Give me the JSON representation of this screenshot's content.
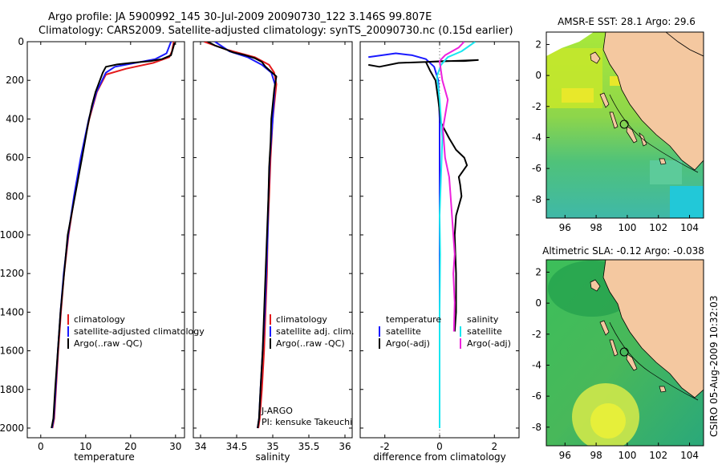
{
  "header": {
    "title_line1": "Argo profile: JA 5900992_145 30-Jul-2009 20090730_122 3.146S 99.807E",
    "title_line2": "Climatology: CARS2009. Satellite-adjusted climatology: synTS_20090730.nc (0.15d earlier)"
  },
  "footer": {
    "stamp": "CSIRO 05-Aug-2009 10:32:03"
  },
  "colors": {
    "climatology": "#e41a1c",
    "satellite": "#1a1aff",
    "argo": "#000000",
    "cyan": "#19e6f0",
    "magenta": "#ee22dd",
    "land": "#f4c8a0"
  },
  "chart_data": [
    {
      "type": "line",
      "xlabel": "temperature",
      "xticks": [
        0,
        10,
        20,
        30
      ],
      "xlim": [
        -3,
        32
      ],
      "ylim": [
        2050,
        0
      ],
      "yticks": [
        0,
        200,
        400,
        600,
        800,
        1000,
        1200,
        1400,
        1600,
        1800,
        2000
      ],
      "legend": [
        "climatology",
        "satellite-adjusted climatology",
        "Argo(..raw -QC)"
      ],
      "series": [
        {
          "name": "climatology",
          "color": "#e41a1c",
          "x": [
            29.6,
            29.2,
            28.6,
            25.0,
            19.0,
            14.5,
            12.5,
            10.8,
            9.0,
            7.5,
            6.2,
            5.2,
            4.5,
            3.9,
            3.4,
            3.0,
            2.6
          ],
          "y": [
            0,
            50,
            80,
            110,
            140,
            170,
            260,
            400,
            600,
            800,
            1000,
            1200,
            1400,
            1600,
            1800,
            1950,
            2000
          ]
        },
        {
          "name": "satellite-adjusted climatology",
          "color": "#1a1aff",
          "x": [
            29.0,
            28.0,
            25.5,
            21.0,
            16.5,
            14.5,
            12.4,
            10.7,
            8.9,
            7.4,
            6.1,
            5.1,
            4.4,
            3.8,
            3.3,
            2.9,
            2.5
          ],
          "y": [
            0,
            60,
            90,
            110,
            130,
            160,
            260,
            400,
            600,
            800,
            1000,
            1200,
            1400,
            1600,
            1800,
            1950,
            2000
          ]
        },
        {
          "name": "Argo(..raw -QC)",
          "color": "#000000",
          "x": [
            29.8,
            29.5,
            29.0,
            27.0,
            24.5,
            20.0,
            17.0,
            14.5,
            13.8,
            12.2,
            11.4,
            10.5,
            9.2,
            7.6,
            6.0,
            5.2,
            4.4,
            3.8,
            3.2,
            2.8,
            2.4
          ],
          "y": [
            5,
            30,
            70,
            90,
            100,
            110,
            118,
            130,
            160,
            260,
            330,
            430,
            600,
            800,
            1000,
            1200,
            1400,
            1600,
            1800,
            1950,
            2000
          ]
        }
      ]
    },
    {
      "type": "line",
      "xlabel": "salinity",
      "xticks": [
        34,
        34.5,
        35,
        35.5,
        36
      ],
      "xlim": [
        33.9,
        36.1
      ],
      "ylim": [
        2050,
        0
      ],
      "legend": [
        "climatology",
        "satellite adj. clim.",
        "Argo(..raw -QC)"
      ],
      "annotation": [
        "J-ARGO",
        "PI: kensuke Takeuchi"
      ],
      "series": [
        {
          "name": "climatology",
          "color": "#e41a1c",
          "x": [
            34.05,
            34.35,
            34.75,
            34.95,
            35.02,
            35.05,
            35.0,
            34.97,
            34.95,
            34.93,
            34.92,
            34.9,
            34.88,
            34.85,
            34.82,
            34.8
          ],
          "y": [
            0,
            40,
            80,
            120,
            160,
            220,
            400,
            600,
            800,
            1000,
            1200,
            1400,
            1600,
            1800,
            1950,
            2000
          ]
        },
        {
          "name": "satellite adj. clim.",
          "color": "#1a1aff",
          "x": [
            34.2,
            34.4,
            34.65,
            34.85,
            34.98,
            35.03,
            35.0,
            34.96,
            34.94,
            34.93,
            34.91,
            34.89,
            34.86,
            34.83,
            34.81,
            34.79
          ],
          "y": [
            0,
            50,
            80,
            120,
            160,
            220,
            400,
            600,
            800,
            1000,
            1200,
            1400,
            1600,
            1800,
            1950,
            2000
          ]
        },
        {
          "name": "Argo(..raw -QC)",
          "color": "#000000",
          "x": [
            34.1,
            34.2,
            34.35,
            34.45,
            34.62,
            34.75,
            34.8,
            34.85,
            34.9,
            35.05,
            35.02,
            34.98,
            34.97,
            34.95,
            34.94,
            34.93,
            34.92,
            34.9,
            34.88,
            34.86,
            34.83,
            34.81,
            34.79
          ],
          "y": [
            0,
            20,
            40,
            55,
            70,
            85,
            95,
            105,
            130,
            180,
            250,
            400,
            520,
            650,
            800,
            900,
            1000,
            1200,
            1400,
            1600,
            1800,
            1950,
            2000
          ]
        }
      ]
    },
    {
      "type": "line",
      "xlabel": "difference from climatology",
      "xticks": [
        -2,
        0,
        2
      ],
      "xlim": [
        -2.9,
        2.9
      ],
      "ylim": [
        2050,
        0
      ],
      "legend_left_title": "temperature",
      "legend_left": [
        "satellite",
        "Argo(-adj)"
      ],
      "legend_right_title": "salinity",
      "legend_right": [
        "satellite",
        "Argo(-adj)"
      ],
      "series": [
        {
          "name": "temperature satellite",
          "color": "#1a1aff",
          "x": [
            -2.6,
            -1.6,
            -1.0,
            -0.5,
            -0.2,
            -0.05,
            0,
            0,
            0,
            0,
            0,
            0
          ],
          "y": [
            80,
            60,
            70,
            90,
            130,
            200,
            400,
            800,
            1200,
            1600,
            1800,
            2000
          ]
        },
        {
          "name": "temperature Argo(-adj)",
          "color": "#000000",
          "x": [
            -2.6,
            -2.2,
            -1.5,
            1.4,
            0.9,
            0.2,
            -0.5,
            -0.35,
            -0.15,
            -0.05,
            0.05,
            0.35,
            0.6,
            0.9,
            1.0,
            0.7,
            0.75,
            0.8,
            0.6,
            0.55,
            0.6,
            0.6,
            0.55
          ],
          "y": [
            120,
            130,
            110,
            95,
            100,
            100,
            105,
            150,
            200,
            300,
            420,
            500,
            560,
            600,
            640,
            700,
            740,
            800,
            900,
            1000,
            1200,
            1400,
            1500
          ]
        },
        {
          "name": "salinity satellite",
          "color": "#19e6f0",
          "x": [
            1.3,
            0.8,
            0.3,
            0.05,
            -0.1,
            0.0,
            0.1,
            0.05,
            0.0,
            0.02,
            0.0,
            0.0,
            0.0
          ],
          "y": [
            0,
            50,
            80,
            120,
            180,
            300,
            500,
            700,
            900,
            1100,
            1400,
            1800,
            2000
          ]
        },
        {
          "name": "salinity Argo(-adj)",
          "color": "#ee22dd",
          "x": [
            0.9,
            0.7,
            0.2,
            0.0,
            0.1,
            0.3,
            0.12,
            0.2,
            0.35,
            0.4,
            0.45,
            0.5,
            0.55,
            0.5,
            0.55,
            0.52
          ],
          "y": [
            0,
            30,
            70,
            100,
            200,
            300,
            450,
            600,
            700,
            800,
            900,
            1000,
            1100,
            1200,
            1350,
            1500
          ]
        }
      ]
    },
    {
      "type": "heatmap",
      "title": "AMSR-E SST: 28.1  Argo: 29.6",
      "xticks": [
        96,
        98,
        100,
        102,
        104
      ],
      "yticks": [
        2,
        0,
        -2,
        -4,
        -6,
        -8
      ],
      "xlim": [
        94.8,
        104.9
      ],
      "ylim": [
        -9.2,
        2.8
      ],
      "argo_position": [
        99.807,
        -3.146
      ]
    },
    {
      "type": "heatmap",
      "title": "Altimetric SLA: -0.12  Argo: -0.038",
      "xticks": [
        96,
        98,
        100,
        102,
        104
      ],
      "yticks": [
        2,
        0,
        -2,
        -4,
        -6,
        -8
      ],
      "xlim": [
        94.8,
        104.9
      ],
      "ylim": [
        -9.2,
        2.8
      ],
      "argo_position": [
        99.807,
        -3.146
      ]
    }
  ]
}
